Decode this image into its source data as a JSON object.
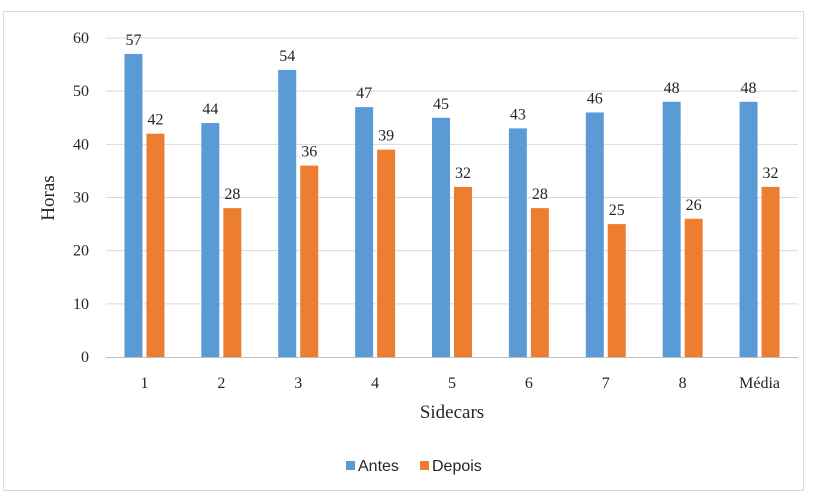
{
  "chart_data": {
    "type": "bar",
    "title": "",
    "xlabel": "Sidecars",
    "ylabel": "Horas",
    "categories": [
      "1",
      "2",
      "3",
      "4",
      "5",
      "6",
      "7",
      "8",
      "Média"
    ],
    "series": [
      {
        "name": "Antes",
        "color": "#5b9bd5",
        "values": [
          57,
          44,
          54,
          47,
          45,
          43,
          46,
          48,
          48
        ]
      },
      {
        "name": "Depois",
        "color": "#ed7d31",
        "values": [
          42,
          28,
          36,
          39,
          32,
          28,
          25,
          26,
          32
        ]
      }
    ],
    "ylim": [
      0,
      60
    ],
    "yticks": [
      0,
      10,
      20,
      30,
      40,
      50,
      60
    ],
    "grid": true,
    "legend_position": "bottom"
  }
}
